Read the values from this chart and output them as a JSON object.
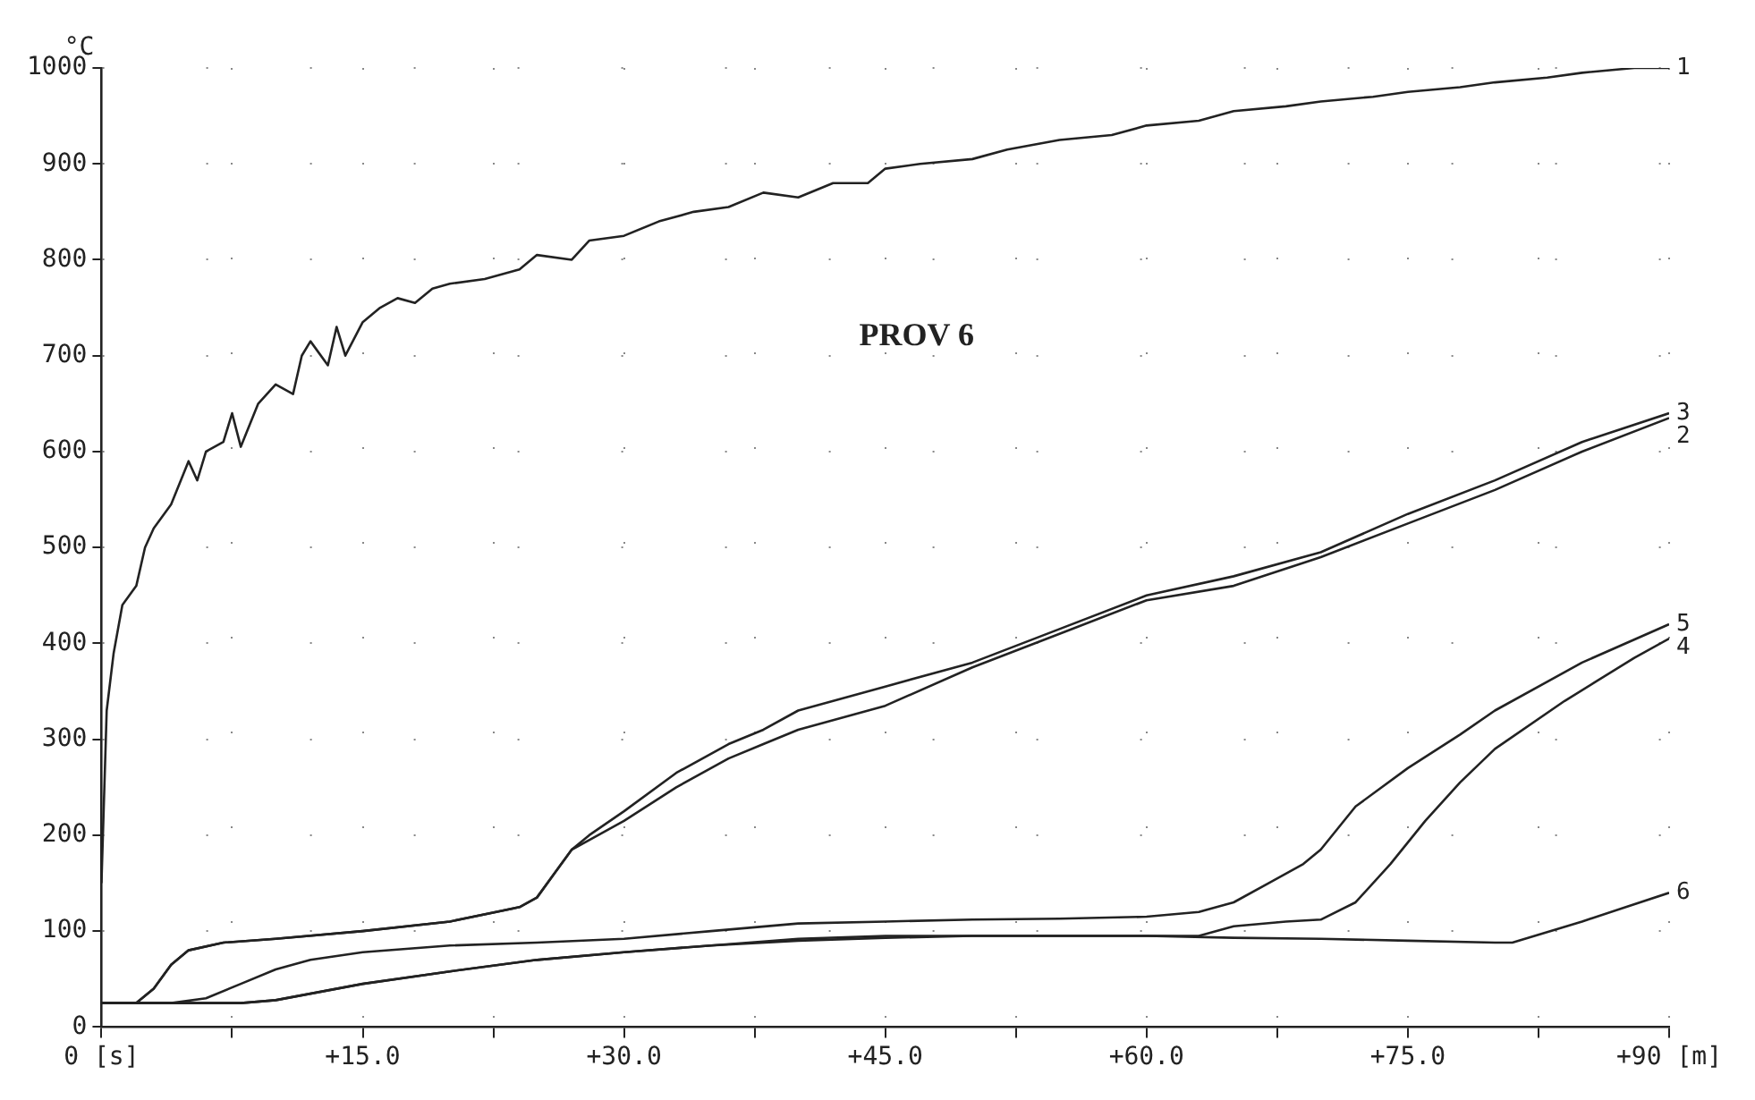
{
  "chart_data": {
    "type": "line",
    "ylabel": "°C",
    "annotations": [
      "PROV 6"
    ],
    "xlim": [
      0,
      90
    ],
    "ylim": [
      0,
      1000
    ],
    "xticks": [
      {
        "value": 0,
        "label": "0 [s]"
      },
      {
        "value": 7.5,
        "label": null
      },
      {
        "value": 15,
        "label": "+15.0"
      },
      {
        "value": 22.5,
        "label": null
      },
      {
        "value": 30,
        "label": "+30.0"
      },
      {
        "value": 37.5,
        "label": null
      },
      {
        "value": 45,
        "label": "+45.0"
      },
      {
        "value": 52.5,
        "label": null
      },
      {
        "value": 60,
        "label": "+60.0"
      },
      {
        "value": 67.5,
        "label": null
      },
      {
        "value": 75,
        "label": "+75.0"
      },
      {
        "value": 82.5,
        "label": null
      },
      {
        "value": 90,
        "label": "+90 [m]"
      }
    ],
    "yticks": [
      0,
      100,
      200,
      300,
      400,
      500,
      600,
      700,
      800,
      900,
      1000
    ],
    "grid": true,
    "legend": false,
    "marker": "none",
    "line_style": "solid",
    "series": [
      {
        "name": "1",
        "color": "#222222",
        "x": [
          0,
          0.3,
          0.7,
          1.2,
          2,
          2.5,
          3,
          4,
          5,
          5.5,
          6,
          7,
          7.5,
          8,
          9,
          10,
          11,
          11.5,
          12,
          13,
          13.5,
          14,
          15,
          16,
          17,
          18,
          19,
          20,
          22,
          24,
          25,
          27,
          28,
          30,
          32,
          34,
          36,
          38,
          40,
          42,
          44,
          45,
          47,
          50,
          52,
          55,
          58,
          60,
          63,
          65,
          68,
          70,
          73,
          75,
          78,
          80,
          83,
          85,
          88,
          90
        ],
        "values": [
          150,
          330,
          390,
          440,
          460,
          500,
          520,
          545,
          590,
          570,
          600,
          610,
          640,
          605,
          650,
          670,
          660,
          700,
          715,
          690,
          730,
          700,
          735,
          750,
          760,
          755,
          770,
          775,
          780,
          790,
          805,
          800,
          820,
          825,
          840,
          850,
          855,
          870,
          865,
          880,
          880,
          895,
          900,
          905,
          915,
          925,
          930,
          940,
          945,
          955,
          960,
          965,
          970,
          975,
          980,
          985,
          990,
          995,
          1000,
          1000
        ]
      },
      {
        "name": "2",
        "color": "#222222",
        "x": [
          0,
          2,
          3,
          4,
          5,
          7,
          10,
          15,
          20,
          24,
          25,
          26,
          27,
          28,
          30,
          33,
          36,
          38,
          40,
          45,
          50,
          55,
          60,
          65,
          70,
          75,
          80,
          85,
          90
        ],
        "values": [
          25,
          25,
          40,
          65,
          80,
          88,
          92,
          100,
          110,
          125,
          135,
          160,
          185,
          195,
          215,
          250,
          280,
          295,
          310,
          335,
          375,
          410,
          445,
          460,
          490,
          525,
          560,
          600,
          635
        ]
      },
      {
        "name": "3",
        "color": "#222222",
        "x": [
          0,
          2,
          3,
          4,
          5,
          7,
          10,
          15,
          20,
          24,
          25,
          26,
          27,
          28,
          30,
          33,
          36,
          38,
          40,
          45,
          50,
          55,
          60,
          65,
          70,
          75,
          80,
          85,
          90
        ],
        "values": [
          25,
          25,
          40,
          65,
          80,
          88,
          92,
          100,
          110,
          125,
          135,
          160,
          185,
          200,
          225,
          265,
          295,
          310,
          330,
          355,
          380,
          415,
          450,
          470,
          495,
          535,
          570,
          610,
          640
        ]
      },
      {
        "name": "4",
        "color": "#222222",
        "x": [
          0,
          8,
          10,
          15,
          20,
          25,
          30,
          35,
          40,
          45,
          50,
          55,
          60,
          63,
          65,
          68,
          70,
          72,
          74,
          76,
          78,
          80,
          84,
          88,
          90
        ],
        "values": [
          25,
          25,
          28,
          45,
          58,
          70,
          78,
          85,
          92,
          95,
          95,
          95,
          95,
          95,
          105,
          110,
          112,
          130,
          170,
          215,
          255,
          290,
          340,
          385,
          405
        ]
      },
      {
        "name": "5",
        "color": "#222222",
        "x": [
          0,
          4,
          6,
          8,
          10,
          12,
          15,
          20,
          25,
          30,
          35,
          40,
          45,
          50,
          55,
          60,
          63,
          65,
          67,
          69,
          70,
          72,
          75,
          78,
          80,
          85,
          90
        ],
        "values": [
          25,
          25,
          30,
          45,
          60,
          70,
          78,
          85,
          88,
          92,
          100,
          108,
          110,
          112,
          113,
          115,
          120,
          130,
          150,
          170,
          185,
          230,
          270,
          305,
          330,
          380,
          420
        ]
      },
      {
        "name": "6",
        "color": "#222222",
        "x": [
          0,
          8,
          10,
          15,
          20,
          25,
          30,
          35,
          40,
          45,
          50,
          55,
          60,
          65,
          70,
          75,
          80,
          81,
          85,
          90
        ],
        "values": [
          25,
          25,
          28,
          45,
          58,
          70,
          78,
          85,
          90,
          93,
          95,
          95,
          95,
          93,
          92,
          90,
          88,
          88,
          110,
          140
        ]
      }
    ]
  }
}
